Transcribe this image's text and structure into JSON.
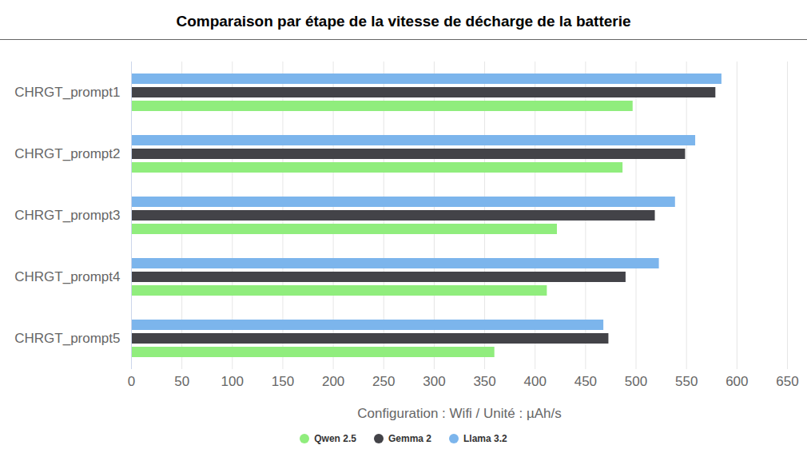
{
  "chart_data": {
    "type": "bar",
    "orientation": "horizontal",
    "title": "Comparaison par étape de la vitesse de décharge de la batterie",
    "x_label": "Configuration : Wifi / Unité : µAh/s",
    "categories": [
      "CHRGT_prompt1",
      "CHRGT_prompt2",
      "CHRGT_prompt3",
      "CHRGT_prompt4",
      "CHRGT_prompt5"
    ],
    "series": [
      {
        "name": "Qwen 2.5",
        "color": "#90ed7d",
        "values": [
          497,
          487,
          422,
          412,
          360
        ]
      },
      {
        "name": "Gemma 2",
        "color": "#434348",
        "values": [
          579,
          549,
          519,
          490,
          473
        ]
      },
      {
        "name": "Llama 3.2",
        "color": "#7cb5ec",
        "values": [
          585,
          559,
          539,
          523,
          468
        ]
      }
    ],
    "xlim": [
      0,
      650
    ],
    "xticks": [
      0,
      50,
      100,
      150,
      200,
      250,
      300,
      350,
      400,
      450,
      500,
      550,
      600,
      650
    ],
    "grid": true,
    "legend": "bottom"
  }
}
